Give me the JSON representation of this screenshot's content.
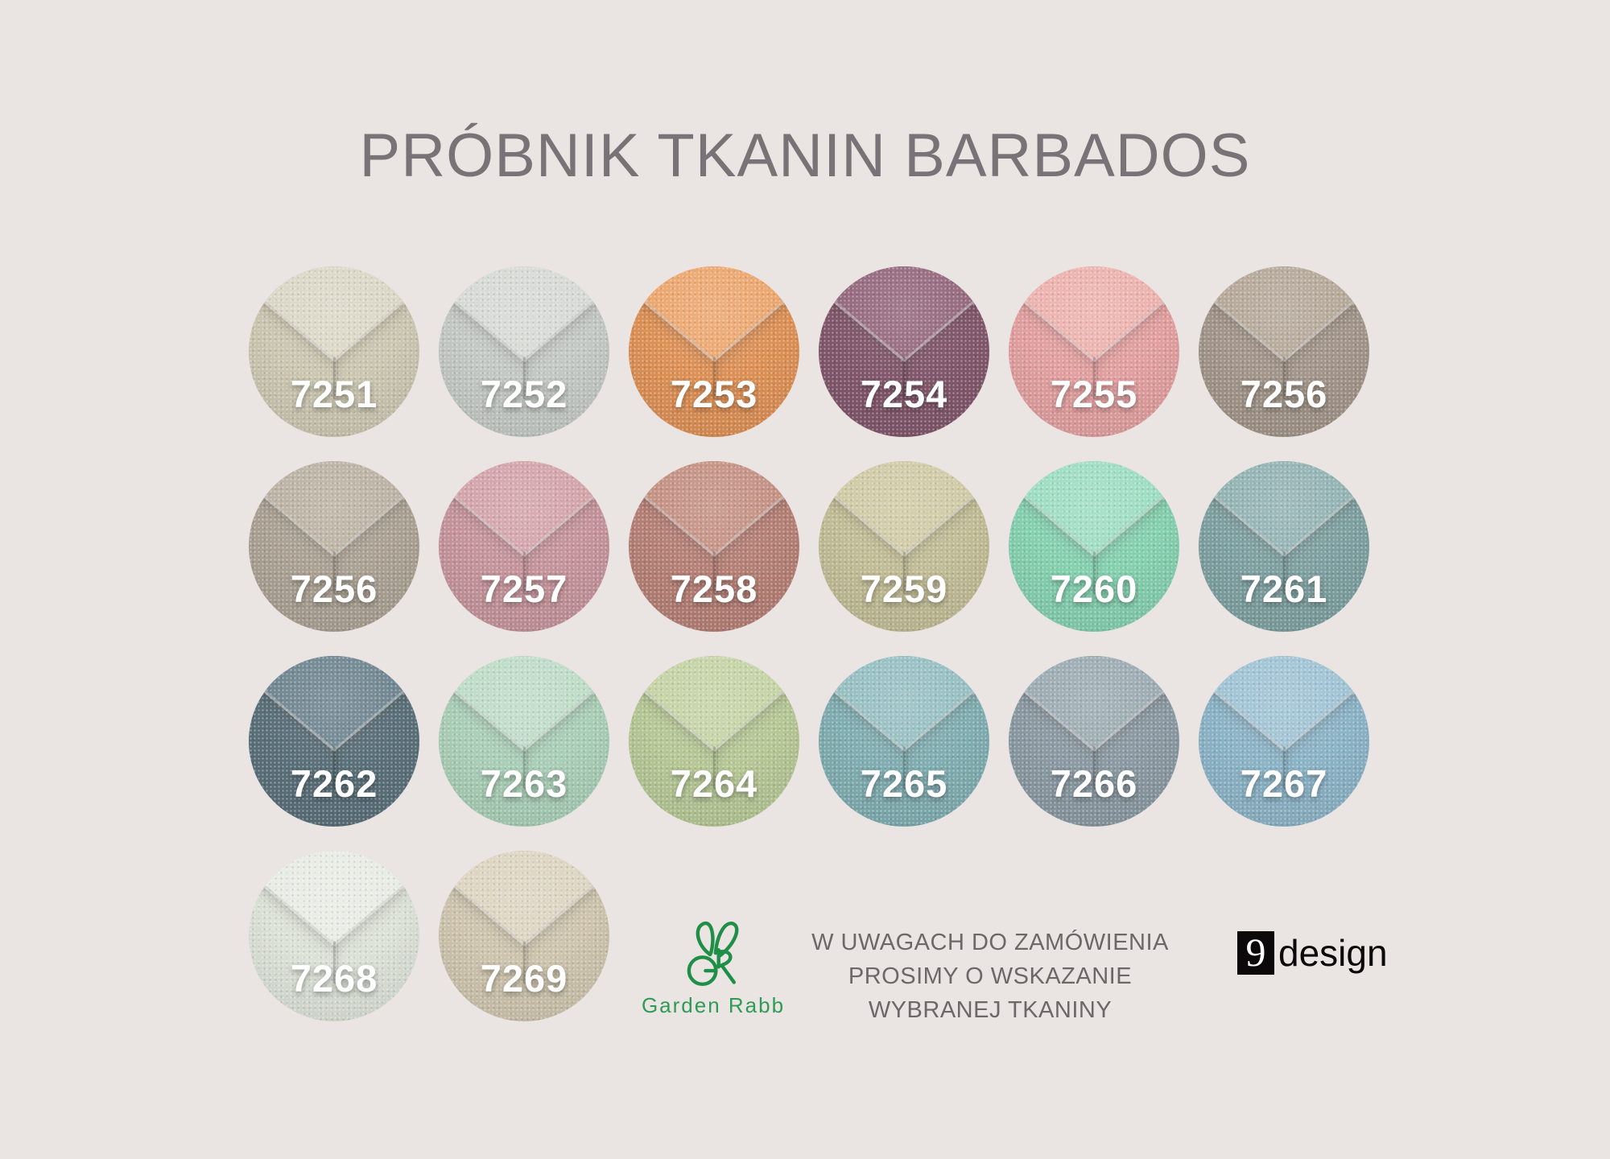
{
  "page": {
    "title": "PRÓBNIK TKANIN BARBADOS",
    "title_color": "#797276",
    "background_color": "#eae4e3"
  },
  "swatches": [
    {
      "number": "7251",
      "row": 1,
      "col": 1,
      "side_color": "#ccc7b1",
      "top_color": "#dcd8c7"
    },
    {
      "number": "7252",
      "row": 1,
      "col": 2,
      "side_color": "#c4c9c4",
      "top_color": "#d7dad5"
    },
    {
      "number": "7253",
      "row": 1,
      "col": 3,
      "side_color": "#de9156",
      "top_color": "#eda76f"
    },
    {
      "number": "7254",
      "row": 1,
      "col": 4,
      "side_color": "#82586c",
      "top_color": "#966a7f"
    },
    {
      "number": "7255",
      "row": 1,
      "col": 5,
      "side_color": "#e3a0a0",
      "top_color": "#eeb3ae"
    },
    {
      "number": "7256",
      "row": 1,
      "col": 6,
      "side_color": "#a3968a",
      "top_color": "#b6a99a"
    },
    {
      "number": "7256",
      "row": 2,
      "col": 1,
      "side_color": "#aca294",
      "top_color": "#bdb3a4"
    },
    {
      "number": "7257",
      "row": 2,
      "col": 2,
      "side_color": "#c6959c",
      "top_color": "#d4a5aa"
    },
    {
      "number": "7258",
      "row": 2,
      "col": 3,
      "side_color": "#b68076",
      "top_color": "#c59284"
    },
    {
      "number": "7259",
      "row": 2,
      "col": 4,
      "side_color": "#c2bd96",
      "top_color": "#d0cba6"
    },
    {
      "number": "7260",
      "row": 2,
      "col": 5,
      "side_color": "#85d1b0",
      "top_color": "#9edec3"
    },
    {
      "number": "7261",
      "row": 2,
      "col": 6,
      "side_color": "#7fa1a2",
      "top_color": "#94b4b4"
    },
    {
      "number": "7262",
      "row": 3,
      "col": 1,
      "side_color": "#5b717a",
      "top_color": "#708792"
    },
    {
      "number": "7263",
      "row": 3,
      "col": 2,
      "side_color": "#aacfb7",
      "top_color": "#bfddc8"
    },
    {
      "number": "7264",
      "row": 3,
      "col": 3,
      "side_color": "#b6c896",
      "top_color": "#c6d4a6"
    },
    {
      "number": "7265",
      "row": 3,
      "col": 4,
      "side_color": "#81aeb2",
      "top_color": "#97c0c3"
    },
    {
      "number": "7266",
      "row": 3,
      "col": 5,
      "side_color": "#8b9aa3",
      "top_color": "#9dadb4"
    },
    {
      "number": "7267",
      "row": 3,
      "col": 6,
      "side_color": "#8cb4c7",
      "top_color": "#a1c4d5"
    },
    {
      "number": "7268",
      "row": 4,
      "col": 1,
      "side_color": "#dce2d8",
      "top_color": "#e9ece5"
    },
    {
      "number": "7269",
      "row": 4,
      "col": 2,
      "side_color": "#cfc5ae",
      "top_color": "#ded5c2"
    }
  ],
  "footer": {
    "garden_rabb": {
      "name": "Garden Rabb",
      "icon": "rabbit-gr-icon",
      "icon_color": "#1f8f47",
      "text_color": "#2e9c55"
    },
    "note": {
      "lines": [
        "W UWAGACH DO ZAMÓWIENIA",
        "PROSIMY O WSKAZANIE",
        "WYBRANEJ TKANINY"
      ],
      "color": "#6e6769"
    },
    "ninedesign": {
      "box_char": "9",
      "text": "design",
      "color": "#0b090a"
    }
  }
}
